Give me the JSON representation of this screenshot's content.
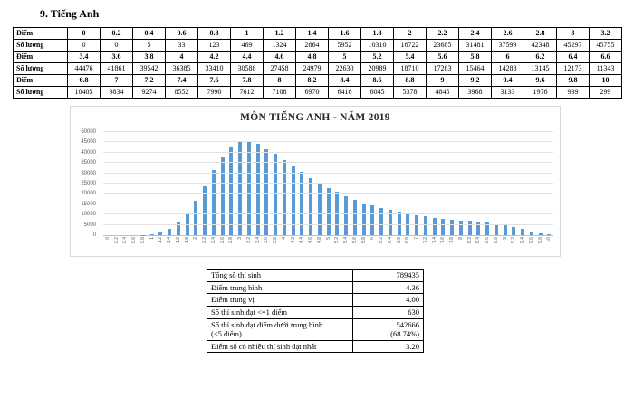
{
  "page": {
    "heading": "9. Tiếng Anh"
  },
  "score_table": {
    "row_label_diem": "Điểm",
    "row_label_so_luong": "Số lượng",
    "pairs": [
      {
        "diem": [
          "0",
          "0.2",
          "0.4",
          "0.6",
          "0.8",
          "1",
          "1.2",
          "1.4",
          "1.6",
          "1.8",
          "2",
          "2.2",
          "2.4",
          "2.6",
          "2.8",
          "3",
          "3.2"
        ],
        "so_luong": [
          "0",
          "0",
          "5",
          "33",
          "123",
          "469",
          "1324",
          "2864",
          "5952",
          "10310",
          "16722",
          "23685",
          "31481",
          "37599",
          "42348",
          "45297",
          "45755"
        ]
      },
      {
        "diem": [
          "3.4",
          "3.6",
          "3.8",
          "4",
          "4.2",
          "4.4",
          "4.6",
          "4.8",
          "5",
          "5.2",
          "5.4",
          "5.6",
          "5.8",
          "6",
          "6.2",
          "6.4",
          "6.6"
        ],
        "so_luong": [
          "44476",
          "41861",
          "39542",
          "36385",
          "33410",
          "30588",
          "27458",
          "24979",
          "22630",
          "20989",
          "18710",
          "17283",
          "15464",
          "14288",
          "13145",
          "12173",
          "11343"
        ]
      },
      {
        "diem": [
          "6.8",
          "7",
          "7.2",
          "7.4",
          "7.6",
          "7.8",
          "8",
          "8.2",
          "8.4",
          "8.6",
          "8.8",
          "9",
          "9.2",
          "9.4",
          "9.6",
          "9.8",
          "10"
        ],
        "so_luong": [
          "10405",
          "9834",
          "9274",
          "8552",
          "7990",
          "7612",
          "7108",
          "6970",
          "6416",
          "6045",
          "5378",
          "4845",
          "3968",
          "3133",
          "1976",
          "939",
          "299"
        ]
      }
    ]
  },
  "chart_data": {
    "type": "bar",
    "title": "MÔN TIẾNG ANH - NĂM 2019",
    "categories": [
      "0",
      "0.2",
      "0.4",
      "0.6",
      "0.8",
      "1",
      "1.2",
      "1.4",
      "1.6",
      "1.8",
      "2",
      "2.2",
      "2.4",
      "2.6",
      "2.8",
      "3",
      "3.2",
      "3.4",
      "3.6",
      "3.8",
      "4",
      "4.2",
      "4.4",
      "4.6",
      "4.8",
      "5",
      "5.2",
      "5.4",
      "5.6",
      "5.8",
      "6",
      "6.2",
      "6.4",
      "6.6",
      "6.8",
      "7",
      "7.2",
      "7.4",
      "7.6",
      "7.8",
      "8",
      "8.2",
      "8.4",
      "8.6",
      "8.8",
      "9",
      "9.2",
      "9.4",
      "9.6",
      "9.8",
      "10"
    ],
    "values": [
      0,
      0,
      5,
      33,
      123,
      469,
      1324,
      2864,
      5952,
      10310,
      16722,
      23685,
      31481,
      37599,
      42348,
      45297,
      45755,
      44476,
      41861,
      39542,
      36385,
      33410,
      30588,
      27458,
      24979,
      22630,
      20989,
      18710,
      17283,
      15464,
      14288,
      13145,
      12173,
      11343,
      10405,
      9834,
      9274,
      8552,
      7990,
      7612,
      7108,
      6970,
      6416,
      6045,
      5378,
      4845,
      3968,
      3133,
      1976,
      939,
      299
    ],
    "xlabel": "",
    "ylabel": "",
    "ylim": [
      0,
      50000
    ],
    "ytick_step": 5000,
    "grid": true,
    "legend": "none",
    "bar_color": "#5b9bd5"
  },
  "summary_table": {
    "rows": [
      {
        "label": "Tổng số thí sinh",
        "value": "789435"
      },
      {
        "label": "Điểm trung bình",
        "value": "4.36"
      },
      {
        "label": "Điểm trung vị",
        "value": "4.00"
      },
      {
        "label": "Số thí sinh đạt <=1 điểm",
        "value": "630"
      },
      {
        "label": "Số thí sinh đạt điểm dưới trung bình\n(<5 điểm)",
        "value": "542666\n(68.74%)"
      },
      {
        "label": "Điểm số có nhiều thí sinh đạt nhất",
        "value": "3.20"
      }
    ]
  }
}
